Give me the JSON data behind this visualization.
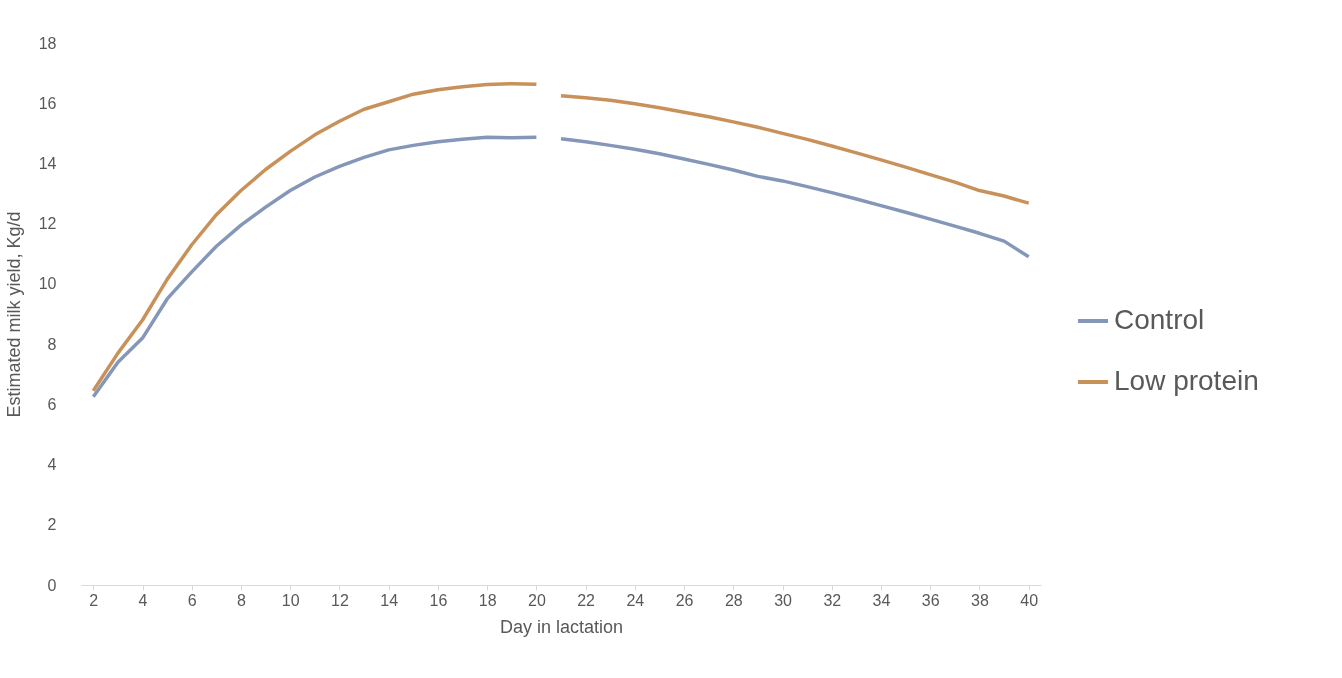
{
  "chart_data": {
    "type": "line",
    "xlabel": "Day in lactation",
    "ylabel": "Estimated milk yield, Kg/d",
    "x": [
      2,
      3,
      4,
      5,
      6,
      7,
      8,
      9,
      10,
      11,
      12,
      13,
      14,
      15,
      16,
      17,
      18,
      19,
      20,
      20.5,
      21,
      22,
      23,
      24,
      25,
      26,
      27,
      28,
      29,
      30,
      31,
      32,
      33,
      34,
      35,
      36,
      37,
      38,
      39,
      40
    ],
    "series": [
      {
        "name": "Control",
        "color": "#8497b9",
        "values": [
          6.25,
          7.4,
          8.2,
          9.5,
          10.4,
          11.25,
          11.95,
          12.55,
          13.1,
          13.55,
          13.9,
          14.2,
          14.45,
          14.6,
          14.72,
          14.8,
          14.87,
          14.85,
          14.87,
          null,
          14.82,
          14.72,
          14.6,
          14.47,
          14.32,
          14.15,
          13.97,
          13.78,
          13.57,
          13.42,
          13.23,
          13.03,
          12.82,
          12.6,
          12.38,
          12.15,
          11.92,
          11.68,
          11.42,
          10.9
        ]
      },
      {
        "name": "Low protein",
        "color": "#c8915a",
        "values": [
          6.45,
          7.7,
          8.8,
          10.15,
          11.3,
          12.3,
          13.1,
          13.8,
          14.4,
          14.95,
          15.4,
          15.8,
          16.05,
          16.3,
          16.45,
          16.55,
          16.62,
          16.65,
          16.63,
          null,
          16.25,
          16.18,
          16.1,
          15.98,
          15.85,
          15.7,
          15.55,
          15.38,
          15.2,
          15.0,
          14.8,
          14.58,
          14.35,
          14.12,
          13.88,
          13.63,
          13.38,
          13.1,
          12.92,
          12.68
        ]
      }
    ],
    "xlim": [
      1.5,
      40.5
    ],
    "xticks": [
      2,
      4,
      6,
      8,
      10,
      12,
      14,
      16,
      18,
      20,
      22,
      24,
      26,
      28,
      30,
      32,
      34,
      36,
      38,
      40
    ],
    "ylim": [
      0,
      18
    ],
    "yticks": [
      0,
      2,
      4,
      6,
      8,
      10,
      12,
      14,
      16,
      18
    ],
    "grid": false,
    "legend": "right",
    "marker": "none",
    "line_style": "solid"
  }
}
